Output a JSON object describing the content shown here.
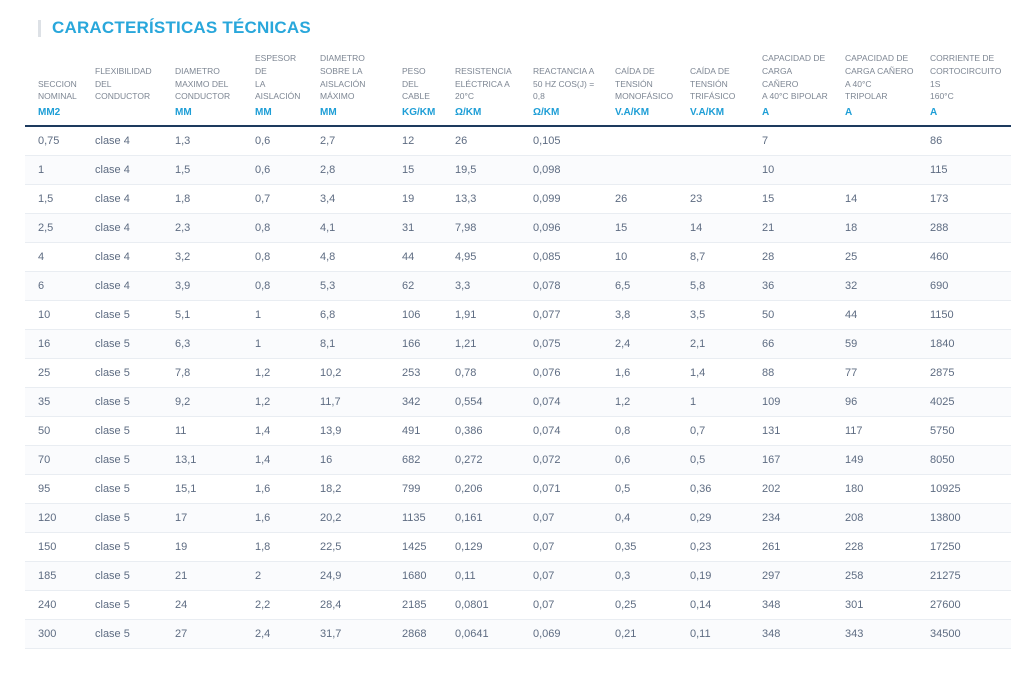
{
  "page": {
    "title": "CARACTERÍSTICAS TÉCNICAS"
  },
  "colors": {
    "accent": "#29a7db",
    "unit_text": "#1e9ed6",
    "header_text": "#7d8693",
    "data_text": "#5e6c82",
    "header_rule": "#1d3a5e",
    "row_divider": "#e9edf2"
  },
  "table": {
    "columns": [
      {
        "label": "SECCION\nNOMINAL",
        "unit": "MM2"
      },
      {
        "label": "FLEXIBILIDAD\nDEL\nCONDUCTOR",
        "unit": ""
      },
      {
        "label": "DIAMETRO\nMAXIMO DEL\nCONDUCTOR",
        "unit": "MM"
      },
      {
        "label": "ESPESOR DE\nLA\nAISLACIÓN",
        "unit": "MM"
      },
      {
        "label": "DIAMETRO\nSOBRE LA\nAISLACIÓN\nMÁXIMO",
        "unit": "MM"
      },
      {
        "label": "PESO\nDEL\nCABLE",
        "unit": "KG/KM"
      },
      {
        "label": "RESISTENCIA\nELÉCTRICA A\n20°C",
        "unit": "Ω/KM"
      },
      {
        "label": "REACTANCIA A\n50 HZ COS(J) =\n0,8",
        "unit": "Ω/KM"
      },
      {
        "label": "CAÍDA DE\nTENSIÓN\nMONOFÁSICO",
        "unit": "V.A/KM"
      },
      {
        "label": "CAÍDA DE\nTENSIÓN\nTRIFÁSICO",
        "unit": "V.A/KM"
      },
      {
        "label": "CAPACIDAD DE\nCARGA CAÑERO\nA 40°C BIPOLAR",
        "unit": "A"
      },
      {
        "label": "CAPACIDAD DE\nCARGA CAÑERO\nA 40°C TRIPOLAR",
        "unit": "A"
      },
      {
        "label": "CORRIENTE DE\nCORTOCIRCUITO 1S\n160°C",
        "unit": "A"
      }
    ],
    "rows": [
      [
        "0,75",
        "clase 4",
        "1,3",
        "0,6",
        "2,7",
        "12",
        "26",
        "0,105",
        "",
        "",
        "7",
        "",
        "86"
      ],
      [
        "1",
        "clase 4",
        "1,5",
        "0,6",
        "2,8",
        "15",
        "19,5",
        "0,098",
        "",
        "",
        "10",
        "",
        "115"
      ],
      [
        "1,5",
        "clase 4",
        "1,8",
        "0,7",
        "3,4",
        "19",
        "13,3",
        "0,099",
        "26",
        "23",
        "15",
        "14",
        "173"
      ],
      [
        "2,5",
        "clase 4",
        "2,3",
        "0,8",
        "4,1",
        "31",
        "7,98",
        "0,096",
        "15",
        "14",
        "21",
        "18",
        "288"
      ],
      [
        "4",
        "clase 4",
        "3,2",
        "0,8",
        "4,8",
        "44",
        "4,95",
        "0,085",
        "10",
        "8,7",
        "28",
        "25",
        "460"
      ],
      [
        "6",
        "clase 4",
        "3,9",
        "0,8",
        "5,3",
        "62",
        "3,3",
        "0,078",
        "6,5",
        "5,8",
        "36",
        "32",
        "690"
      ],
      [
        "10",
        "clase 5",
        "5,1",
        "1",
        "6,8",
        "106",
        "1,91",
        "0,077",
        "3,8",
        "3,5",
        "50",
        "44",
        "1150"
      ],
      [
        "16",
        "clase 5",
        "6,3",
        "1",
        "8,1",
        "166",
        "1,21",
        "0,075",
        "2,4",
        "2,1",
        "66",
        "59",
        "1840"
      ],
      [
        "25",
        "clase 5",
        "7,8",
        "1,2",
        "10,2",
        "253",
        "0,78",
        "0,076",
        "1,6",
        "1,4",
        "88",
        "77",
        "2875"
      ],
      [
        "35",
        "clase 5",
        "9,2",
        "1,2",
        "11,7",
        "342",
        "0,554",
        "0,074",
        "1,2",
        "1",
        "109",
        "96",
        "4025"
      ],
      [
        "50",
        "clase 5",
        "11",
        "1,4",
        "13,9",
        "491",
        "0,386",
        "0,074",
        "0,8",
        "0,7",
        "131",
        "117",
        "5750"
      ],
      [
        "70",
        "clase 5",
        "13,1",
        "1,4",
        "16",
        "682",
        "0,272",
        "0,072",
        "0,6",
        "0,5",
        "167",
        "149",
        "8050"
      ],
      [
        "95",
        "clase 5",
        "15,1",
        "1,6",
        "18,2",
        "799",
        "0,206",
        "0,071",
        "0,5",
        "0,36",
        "202",
        "180",
        "10925"
      ],
      [
        "120",
        "clase 5",
        "17",
        "1,6",
        "20,2",
        "1135",
        "0,161",
        "0,07",
        "0,4",
        "0,29",
        "234",
        "208",
        "13800"
      ],
      [
        "150",
        "clase 5",
        "19",
        "1,8",
        "22,5",
        "1425",
        "0,129",
        "0,07",
        "0,35",
        "0,23",
        "261",
        "228",
        "17250"
      ],
      [
        "185",
        "clase 5",
        "21",
        "2",
        "24,9",
        "1680",
        "0,11",
        "0,07",
        "0,3",
        "0,19",
        "297",
        "258",
        "21275"
      ],
      [
        "240",
        "clase 5",
        "24",
        "2,2",
        "28,4",
        "2185",
        "0,0801",
        "0,07",
        "0,25",
        "0,14",
        "348",
        "301",
        "27600"
      ],
      [
        "300",
        "clase 5",
        "27",
        "2,4",
        "31,7",
        "2868",
        "0,0641",
        "0,069",
        "0,21",
        "0,11",
        "348",
        "343",
        "34500"
      ]
    ]
  }
}
